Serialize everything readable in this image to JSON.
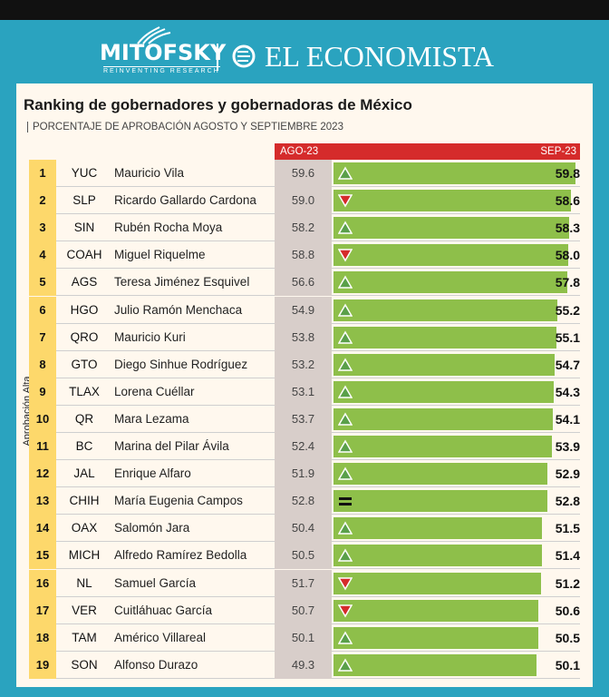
{
  "header": {
    "logo_mitofsky": "MITOFSKY",
    "logo_mitofsky_sub": "REINVENTING RESEARCH",
    "logo_economista": "EL ECONOMISTA"
  },
  "chart_data": {
    "type": "bar",
    "title": "Ranking de gobernadores y gobernadoras de México",
    "subtitle": "PORCENTAJE DE APROBACIÓN AGOSTO Y SEPTIEMBRE 2023",
    "col_ago": "AGO-23",
    "col_sep": "SEP-23",
    "axis_label": "Aprobación Alta",
    "xlim": [
      0,
      60
    ],
    "colors": {
      "bar": "#8ebf4a",
      "up": "#5aa04a",
      "down": "#d52b2b",
      "header": "#d52b2b",
      "rank_bg": "#fdd86b"
    },
    "rows": [
      {
        "rank": "1",
        "state": "YUC",
        "name": "Mauricio Vila",
        "ago": "59.6",
        "sep": "59.8",
        "trend": "up"
      },
      {
        "rank": "2",
        "state": "SLP",
        "name": "Ricardo Gallardo Cardona",
        "ago": "59.0",
        "sep": "58.6",
        "trend": "down"
      },
      {
        "rank": "3",
        "state": "SIN",
        "name": "Rubén Rocha Moya",
        "ago": "58.2",
        "sep": "58.3",
        "trend": "up"
      },
      {
        "rank": "4",
        "state": "COAH",
        "name": "Miguel Riquelme",
        "ago": "58.8",
        "sep": "58.0",
        "trend": "down"
      },
      {
        "rank": "5",
        "state": "AGS",
        "name": "Teresa Jiménez Esquivel",
        "ago": "56.6",
        "sep": "57.8",
        "trend": "up"
      },
      {
        "rank": "6",
        "state": "HGO",
        "name": "Julio Ramón Menchaca",
        "ago": "54.9",
        "sep": "55.2",
        "trend": "up"
      },
      {
        "rank": "7",
        "state": "QRO",
        "name": "Mauricio Kuri",
        "ago": "53.8",
        "sep": "55.1",
        "trend": "up"
      },
      {
        "rank": "8",
        "state": "GTO",
        "name": "Diego Sinhue Rodríguez",
        "ago": "53.2",
        "sep": "54.7",
        "trend": "up"
      },
      {
        "rank": "9",
        "state": "TLAX",
        "name": "Lorena Cuéllar",
        "ago": "53.1",
        "sep": "54.3",
        "trend": "up"
      },
      {
        "rank": "10",
        "state": "QR",
        "name": "Mara Lezama",
        "ago": "53.7",
        "sep": "54.1",
        "trend": "up"
      },
      {
        "rank": "11",
        "state": "BC",
        "name": "Marina del Pilar Ávila",
        "ago": "52.4",
        "sep": "53.9",
        "trend": "up"
      },
      {
        "rank": "12",
        "state": "JAL",
        "name": "Enrique Alfaro",
        "ago": "51.9",
        "sep": "52.9",
        "trend": "up"
      },
      {
        "rank": "13",
        "state": "CHIH",
        "name": "María Eugenia Campos",
        "ago": "52.8",
        "sep": "52.8",
        "trend": "equal"
      },
      {
        "rank": "14",
        "state": "OAX",
        "name": "Salomón Jara",
        "ago": "50.4",
        "sep": "51.5",
        "trend": "up"
      },
      {
        "rank": "15",
        "state": "MICH",
        "name": "Alfredo Ramírez Bedolla",
        "ago": "50.5",
        "sep": "51.4",
        "trend": "up"
      },
      {
        "rank": "16",
        "state": "NL",
        "name": "Samuel García",
        "ago": "51.7",
        "sep": "51.2",
        "trend": "down"
      },
      {
        "rank": "17",
        "state": "VER",
        "name": "Cuitláhuac García",
        "ago": "50.7",
        "sep": "50.6",
        "trend": "down"
      },
      {
        "rank": "18",
        "state": "TAM",
        "name": "Américo Villareal",
        "ago": "50.1",
        "sep": "50.5",
        "trend": "up"
      },
      {
        "rank": "19",
        "state": "SON",
        "name": "Alfonso Durazo",
        "ago": "49.3",
        "sep": "50.1",
        "trend": "up"
      }
    ]
  }
}
